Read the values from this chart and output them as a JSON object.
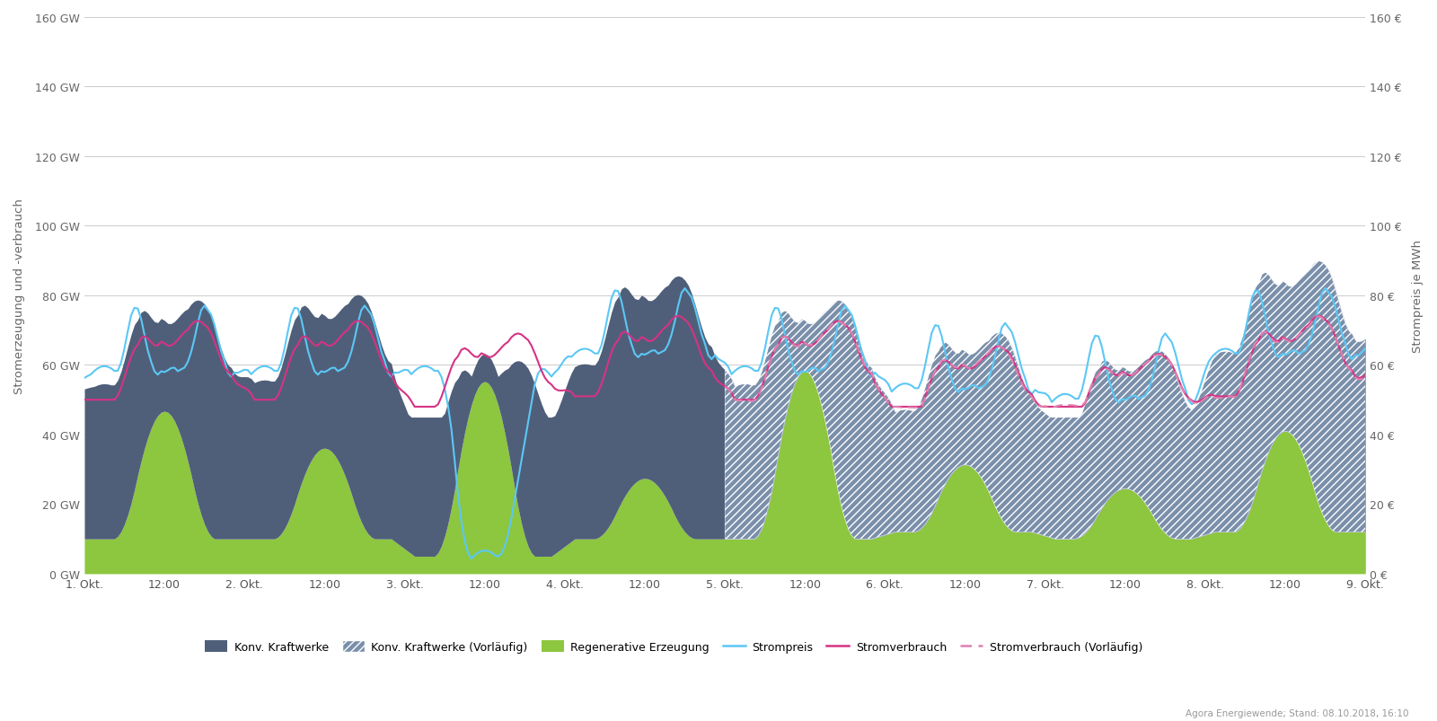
{
  "ylabel_left": "Stromerzeugung und -verbrauch",
  "ylabel_right": "Strompreis je MWh",
  "ylim": [
    0,
    160
  ],
  "yticks": [
    0,
    20,
    40,
    60,
    80,
    100,
    120,
    140,
    160
  ],
  "ytick_labels_left": [
    "0 GW",
    "20 GW",
    "40 GW",
    "60 GW",
    "80 GW",
    "100 GW",
    "120 GW",
    "140 GW",
    "160 GW"
  ],
  "ytick_labels_right": [
    "0 €",
    "20 €",
    "40 €",
    "60 €",
    "80 €",
    "100 €",
    "120 €",
    "140 €",
    "160 €"
  ],
  "xtick_labels": [
    "1. Okt.",
    "12:00",
    "2. Okt.",
    "12:00",
    "3. Okt.",
    "12:00",
    "4. Okt.",
    "12:00",
    "5. Okt.",
    "12:00",
    "6. Okt.",
    "12:00",
    "7. Okt.",
    "12:00",
    "8. Okt.",
    "12:00",
    "9. Okt."
  ],
  "color_konv": "#4f5f7a",
  "color_konv_vorl": "#7a8faa",
  "color_regen": "#8dc63f",
  "color_strompreis": "#5bc8f5",
  "color_stromverbrauch": "#d63384",
  "color_stromverbrauch_vorl": "#e080b0",
  "footer_text": "Agora Energiewende; Stand: 08.10.2018, 16:10",
  "legend_labels": [
    "Konv. Kraftwerke",
    "Konv. Kraftwerke (Vorläufig)",
    "Regenerative Erzeugung",
    "Strompreis",
    "Stromverbrauch",
    "Stromverbrauch (Vorläufig)"
  ],
  "vorl_boundary_hours": 96,
  "total_hours": 192,
  "n_points": 385
}
